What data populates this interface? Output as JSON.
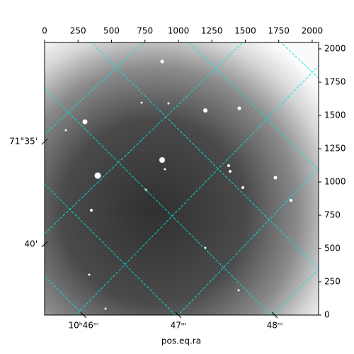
{
  "chart_data": {
    "type": "image",
    "xlabel": "pos.eq.ra",
    "xlim": [
      0,
      2048
    ],
    "ylim": [
      0,
      2048
    ],
    "xticks": [
      0,
      250,
      500,
      750,
      1000,
      1250,
      1500,
      1750,
      2000
    ],
    "yticks": [
      0,
      250,
      500,
      750,
      1000,
      1250,
      1500,
      1750,
      2000
    ],
    "ra_ticks": [
      {
        "value": 291,
        "label": "10ʰ46ᵐ"
      },
      {
        "value": 1000,
        "label": "47ᵐ"
      },
      {
        "value": 1720,
        "label": "48ᵐ"
      }
    ],
    "dec_ticks": [
      {
        "value": 1303,
        "label": "71°35'"
      },
      {
        "value": 532,
        "label": "40'"
      }
    ],
    "grid_color": "#00e5e5"
  }
}
